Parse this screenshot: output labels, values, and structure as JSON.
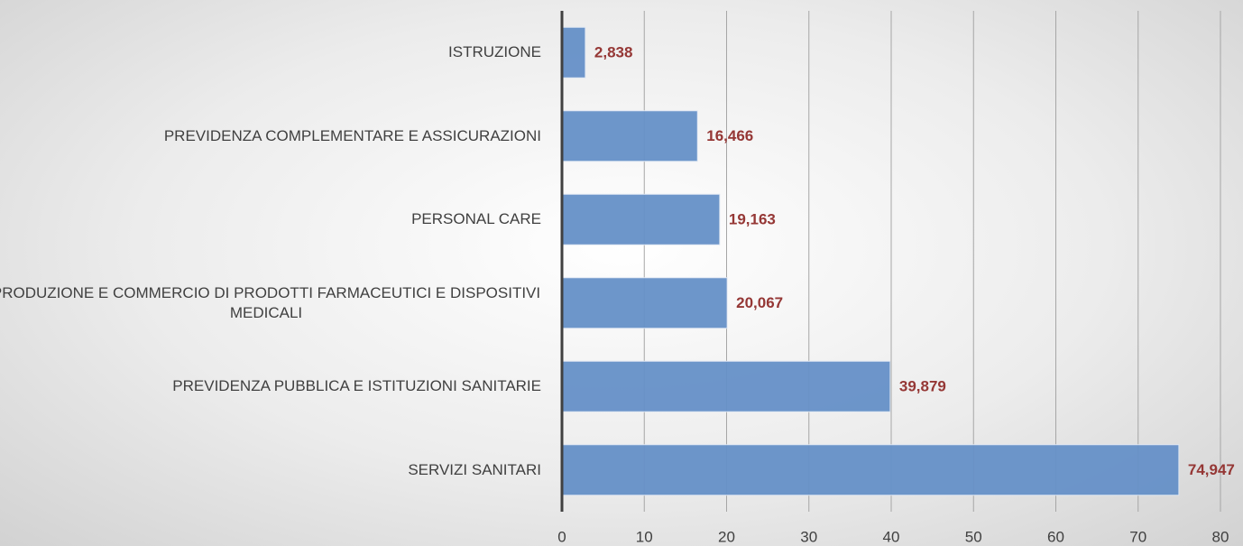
{
  "chart_data": {
    "type": "bar",
    "orientation": "horizontal",
    "categories": [
      "ISTRUZIONE",
      "PREVIDENZA COMPLEMENTARE E ASSICURAZIONI",
      "PERSONAL CARE",
      "PRODUZIONE E COMMERCIO DI PRODOTTI FARMACEUTICI E DISPOSITIVI MEDICALI",
      "PREVIDENZA PUBBLICA E ISTITUZIONI SANITARIE",
      "SERVIZI SANITARI"
    ],
    "values": [
      2.838,
      16.466,
      19.163,
      20.067,
      39.879,
      74.947
    ],
    "value_labels": [
      "2,838",
      "16,466",
      "19,163",
      "20,067",
      "39,879",
      "74,947"
    ],
    "color": "#6691c8",
    "xlim": [
      0,
      80
    ],
    "xticks": [
      0,
      10,
      20,
      30,
      40,
      50,
      60,
      70,
      80
    ],
    "grid": true
  }
}
